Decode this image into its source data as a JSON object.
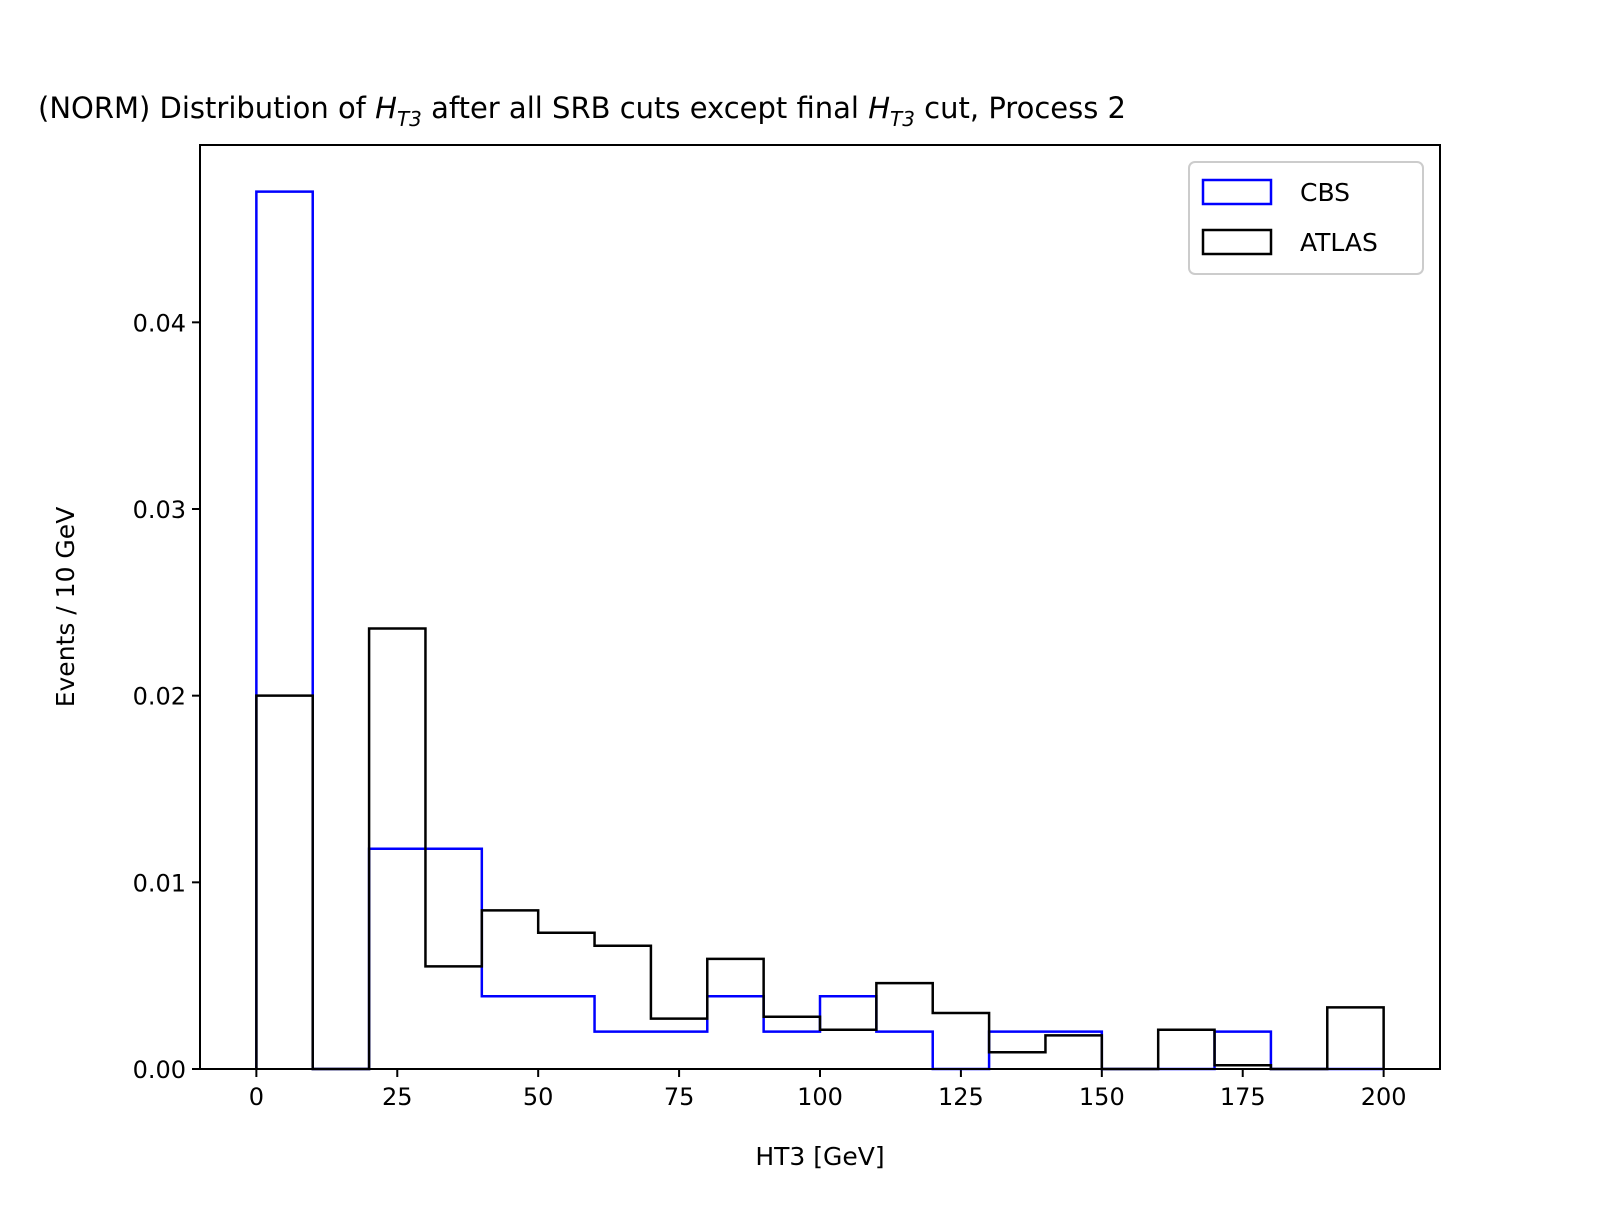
{
  "chart_data": {
    "type": "bar",
    "title": {
      "prefix": "(NORM) Distribution of ",
      "var_main": "H",
      "var_sub": "T3",
      "middle": " after all SRB cuts except final ",
      "suffix": " cut, Process 2"
    },
    "xlabel": "HT3 [GeV]",
    "ylabel": "Events / 10 GeV",
    "xlim": [
      -10,
      210
    ],
    "ylim": [
      0,
      0.0495
    ],
    "xticks": [
      0,
      25,
      50,
      75,
      100,
      125,
      150,
      175,
      200
    ],
    "xtick_labels": [
      "0",
      "25",
      "50",
      "75",
      "100",
      "125",
      "150",
      "175",
      "200"
    ],
    "yticks": [
      0.0,
      0.01,
      0.02,
      0.03,
      0.04
    ],
    "ytick_labels": [
      "0.00",
      "0.01",
      "0.02",
      "0.03",
      "0.04"
    ],
    "bin_edges": [
      0,
      10,
      20,
      30,
      40,
      50,
      60,
      70,
      80,
      90,
      100,
      110,
      120,
      130,
      140,
      150,
      160,
      170,
      180,
      190,
      200
    ],
    "grid": false,
    "legend_position": "top-right",
    "series": [
      {
        "name": "CBS",
        "color": "#0000ff",
        "values": [
          0.047,
          0.0,
          0.0118,
          0.0118,
          0.0039,
          0.0039,
          0.002,
          0.002,
          0.0039,
          0.002,
          0.0039,
          0.002,
          0.0,
          0.002,
          0.002,
          0.0,
          0.0,
          0.002,
          0.0,
          0.0
        ]
      },
      {
        "name": "ATLAS",
        "color": "#000000",
        "values": [
          0.02,
          0.0,
          0.0236,
          0.0055,
          0.0085,
          0.0073,
          0.0066,
          0.0027,
          0.0059,
          0.0028,
          0.0021,
          0.0046,
          0.003,
          0.0009,
          0.0018,
          0.0,
          0.0021,
          0.0002,
          0.0,
          0.0033
        ]
      }
    ]
  }
}
